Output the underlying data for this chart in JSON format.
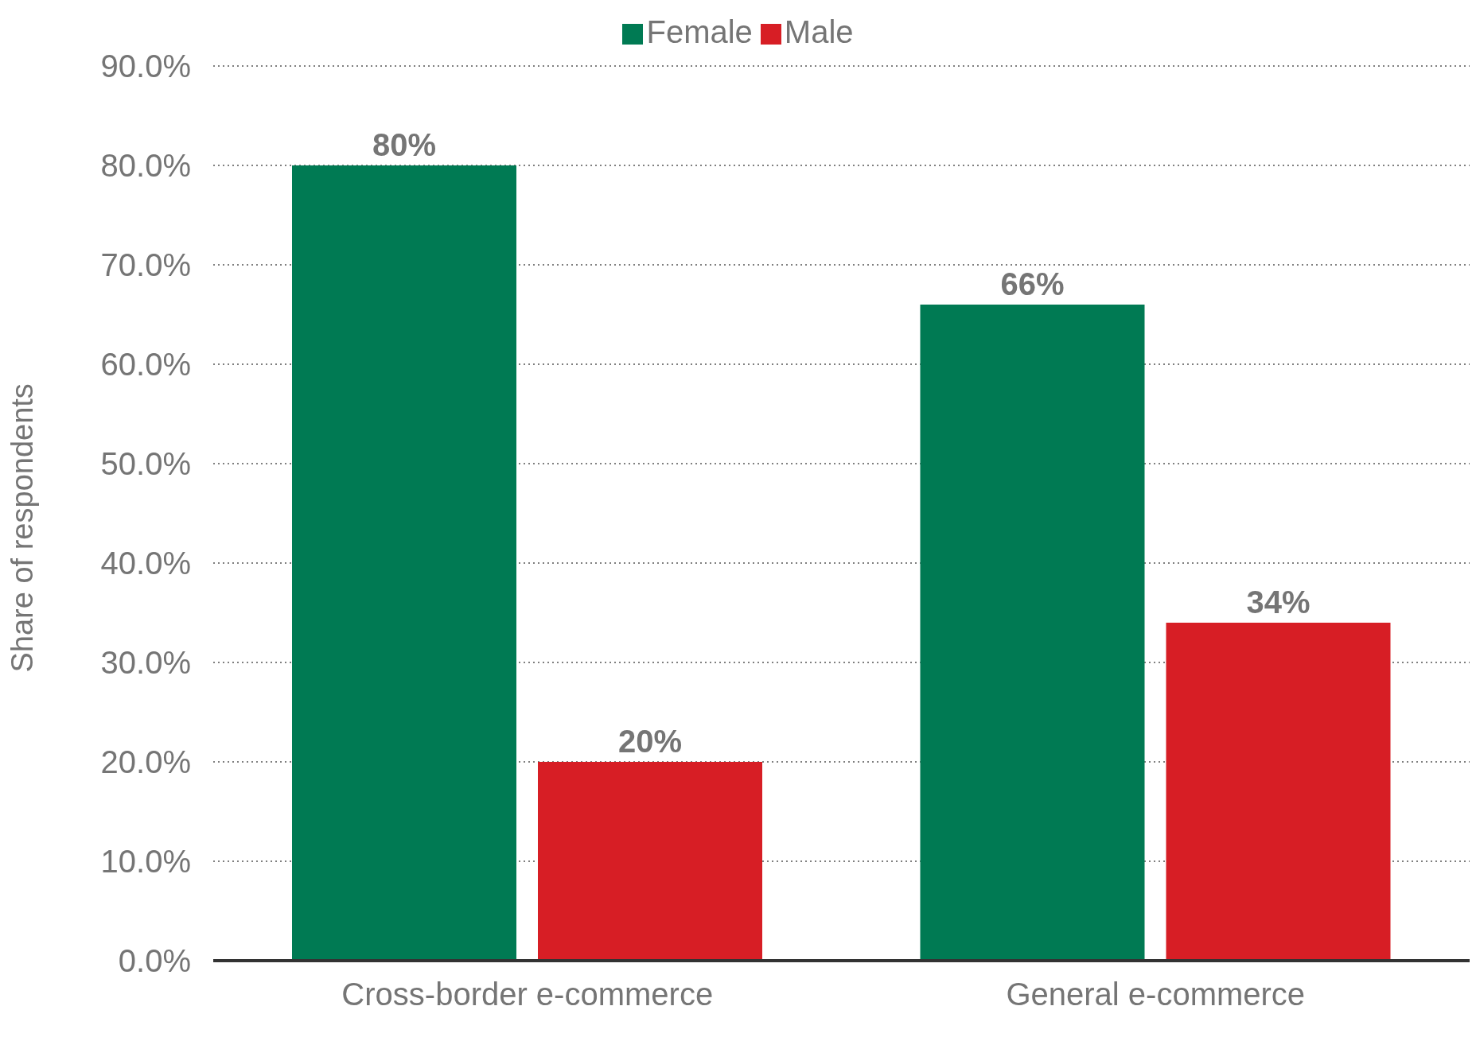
{
  "chart_data": {
    "type": "bar",
    "ylabel": "Share of respondents",
    "categories": [
      "Cross-border e-commerce",
      "General e-commerce"
    ],
    "series": [
      {
        "name": "Female",
        "color": "#007a53",
        "values": [
          80,
          66
        ],
        "value_labels": [
          "80%",
          "66%"
        ]
      },
      {
        "name": "Male",
        "color": "#d71e25",
        "values": [
          20,
          34
        ],
        "value_labels": [
          "20%",
          "34%"
        ]
      }
    ],
    "ylim": [
      0,
      90
    ],
    "yticks": [
      {
        "value": 0,
        "label": "0.0%"
      },
      {
        "value": 10,
        "label": "10.0%"
      },
      {
        "value": 20,
        "label": "20.0%"
      },
      {
        "value": 30,
        "label": "30.0%"
      },
      {
        "value": 40,
        "label": "40.0%"
      },
      {
        "value": 50,
        "label": "50.0%"
      },
      {
        "value": 60,
        "label": "60.0%"
      },
      {
        "value": 70,
        "label": "70.0%"
      },
      {
        "value": 80,
        "label": "80.0%"
      },
      {
        "value": 90,
        "label": "90.0%"
      }
    ],
    "grid": "y",
    "legend": "top"
  }
}
